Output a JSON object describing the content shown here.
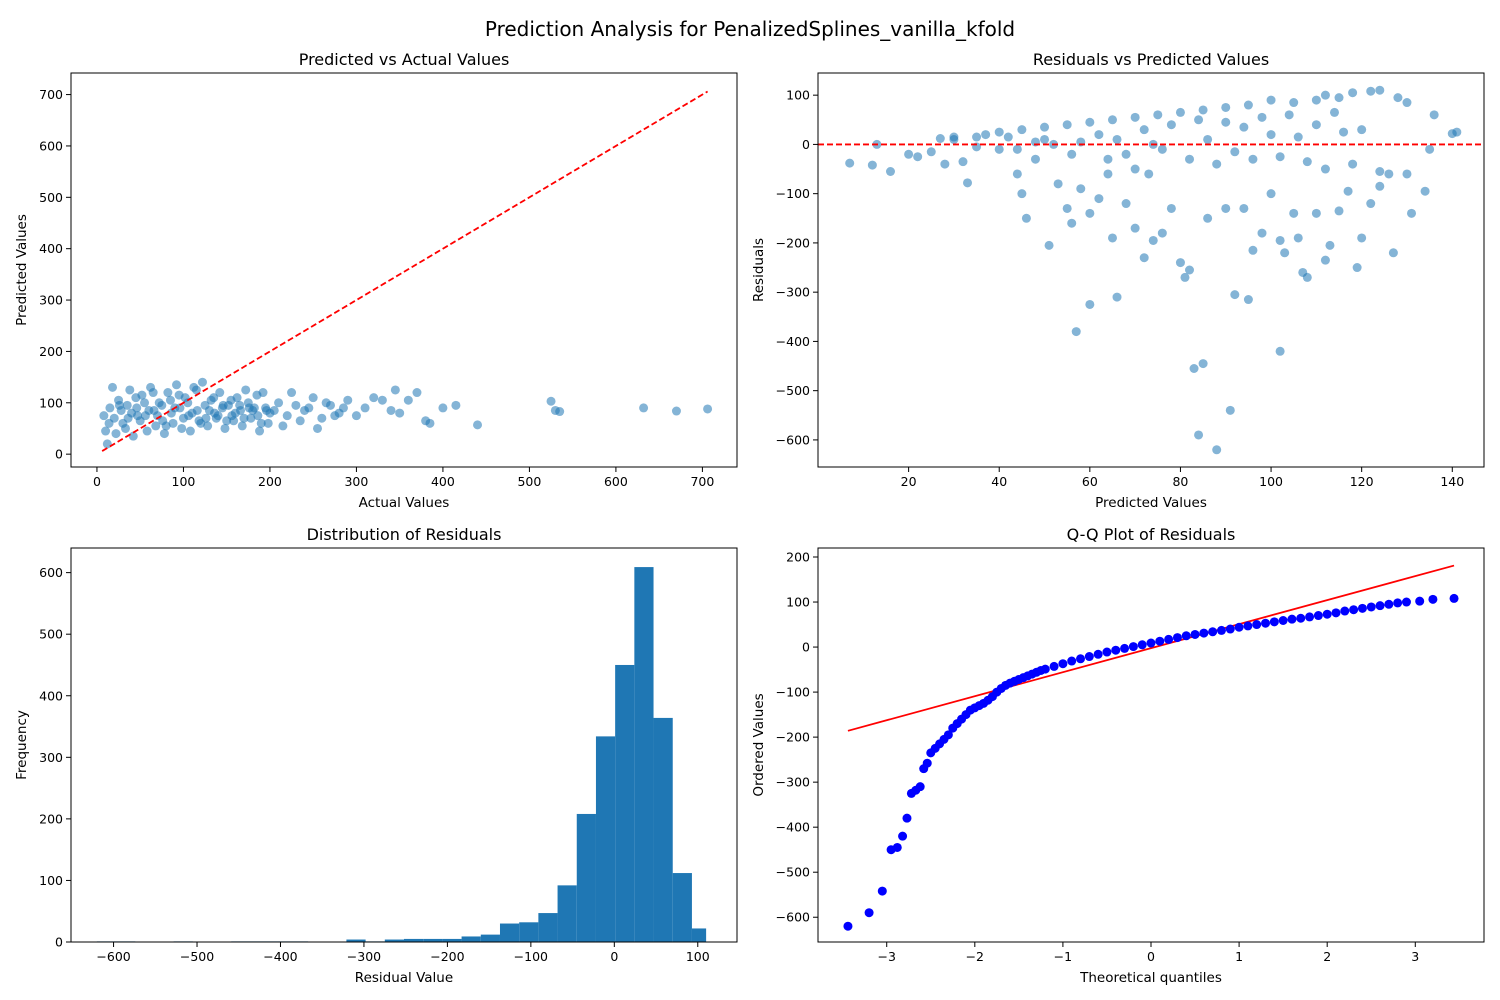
{
  "figure": {
    "suptitle": "Prediction Analysis for PenalizedSplines_vanilla_kfold"
  },
  "colors": {
    "scatter": "#1f77b4",
    "hist": "#1f77b4",
    "ref_line": "#ff0000",
    "qq_points": "#0000ff",
    "qq_line": "#ff0000"
  },
  "chart_data": [
    {
      "type": "scatter",
      "title": "Predicted vs Actual Values",
      "xlabel": "Actual Values",
      "ylabel": "Predicted Values",
      "xlim": [
        -30,
        740
      ],
      "ylim": [
        -25,
        742
      ],
      "xticks": [
        0,
        100,
        200,
        300,
        400,
        500,
        600,
        700
      ],
      "yticks": [
        0,
        100,
        200,
        300,
        400,
        500,
        600,
        700
      ],
      "grid": false,
      "reference_line": {
        "style": "dashed",
        "x": [
          6,
          706
        ],
        "y": [
          6,
          706
        ]
      },
      "points": [
        [
          10,
          45
        ],
        [
          15,
          90
        ],
        [
          20,
          70
        ],
        [
          25,
          105
        ],
        [
          30,
          60
        ],
        [
          35,
          95
        ],
        [
          40,
          80
        ],
        [
          45,
          110
        ],
        [
          50,
          65
        ],
        [
          55,
          100
        ],
        [
          60,
          85
        ],
        [
          65,
          120
        ],
        [
          70,
          75
        ],
        [
          75,
          95
        ],
        [
          80,
          55
        ],
        [
          85,
          105
        ],
        [
          90,
          90
        ],
        [
          95,
          115
        ],
        [
          100,
          70
        ],
        [
          105,
          100
        ],
        [
          110,
          80
        ],
        [
          115,
          125
        ],
        [
          120,
          60
        ],
        [
          125,
          95
        ],
        [
          130,
          85
        ],
        [
          135,
          110
        ],
        [
          140,
          75
        ],
        [
          145,
          90
        ],
        [
          150,
          65
        ],
        [
          155,
          105
        ],
        [
          160,
          80
        ],
        [
          165,
          95
        ],
        [
          170,
          70
        ],
        [
          175,
          100
        ],
        [
          180,
          85
        ],
        [
          185,
          115
        ],
        [
          190,
          60
        ],
        [
          195,
          90
        ],
        [
          200,
          80
        ],
        [
          210,
          100
        ],
        [
          220,
          75
        ],
        [
          230,
          95
        ],
        [
          240,
          85
        ],
        [
          250,
          110
        ],
        [
          260,
          70
        ],
        [
          270,
          95
        ],
        [
          280,
          80
        ],
        [
          290,
          105
        ],
        [
          12,
          20
        ],
        [
          18,
          130
        ],
        [
          22,
          40
        ],
        [
          28,
          85
        ],
        [
          33,
          50
        ],
        [
          38,
          125
        ],
        [
          42,
          35
        ],
        [
          47,
          75
        ],
        [
          52,
          115
        ],
        [
          58,
          45
        ],
        [
          62,
          130
        ],
        [
          68,
          55
        ],
        [
          72,
          100
        ],
        [
          78,
          40
        ],
        [
          82,
          120
        ],
        [
          88,
          60
        ],
        [
          92,
          135
        ],
        [
          98,
          50
        ],
        [
          102,
          110
        ],
        [
          108,
          45
        ],
        [
          112,
          130
        ],
        [
          118,
          65
        ],
        [
          122,
          140
        ],
        [
          128,
          55
        ],
        [
          132,
          105
        ],
        [
          138,
          70
        ],
        [
          142,
          120
        ],
        [
          148,
          50
        ],
        [
          152,
          95
        ],
        [
          158,
          65
        ],
        [
          162,
          110
        ],
        [
          168,
          55
        ],
        [
          172,
          125
        ],
        [
          178,
          70
        ],
        [
          182,
          90
        ],
        [
          188,
          45
        ],
        [
          192,
          120
        ],
        [
          198,
          60
        ],
        [
          205,
          85
        ],
        [
          215,
          55
        ],
        [
          225,
          120
        ],
        [
          235,
          65
        ],
        [
          245,
          90
        ],
        [
          255,
          50
        ],
        [
          265,
          100
        ],
        [
          275,
          75
        ],
        [
          285,
          90
        ],
        [
          8,
          75
        ],
        [
          14,
          60
        ],
        [
          26,
          95
        ],
        [
          36,
          70
        ],
        [
          46,
          90
        ],
        [
          56,
          75
        ],
        [
          66,
          85
        ],
        [
          76,
          65
        ],
        [
          86,
          80
        ],
        [
          96,
          90
        ],
        [
          106,
          75
        ],
        [
          116,
          85
        ],
        [
          126,
          70
        ],
        [
          136,
          80
        ],
        [
          146,
          95
        ],
        [
          156,
          75
        ],
        [
          166,
          85
        ],
        [
          176,
          90
        ],
        [
          186,
          75
        ],
        [
          196,
          85
        ],
        [
          300,
          75
        ],
        [
          310,
          90
        ],
        [
          320,
          110
        ],
        [
          330,
          105
        ],
        [
          340,
          85
        ],
        [
          345,
          125
        ],
        [
          350,
          80
        ],
        [
          360,
          105
        ],
        [
          370,
          120
        ],
        [
          380,
          65
        ],
        [
          385,
          60
        ],
        [
          400,
          90
        ],
        [
          415,
          95
        ],
        [
          440,
          57
        ],
        [
          525,
          103
        ],
        [
          530,
          85
        ],
        [
          535,
          83
        ],
        [
          632,
          90
        ],
        [
          670,
          84
        ],
        [
          706,
          88
        ]
      ]
    },
    {
      "type": "scatter",
      "title": "Residuals vs Predicted Values",
      "xlabel": "Predicted Values",
      "ylabel": "Residuals",
      "xlim": [
        0,
        147
      ],
      "ylim": [
        -655,
        145
      ],
      "xticks": [
        20,
        40,
        60,
        80,
        100,
        120,
        140
      ],
      "yticks": [
        100,
        0,
        -100,
        -200,
        -300,
        -400,
        -500,
        -600
      ],
      "grid": false,
      "reference_line": {
        "style": "dashed",
        "y": 0
      },
      "points": [
        [
          7,
          -38
        ],
        [
          12,
          -42
        ],
        [
          13,
          0
        ],
        [
          16,
          -55
        ],
        [
          20,
          -20
        ],
        [
          22,
          -25
        ],
        [
          25,
          -15
        ],
        [
          27,
          12
        ],
        [
          28,
          -40
        ],
        [
          30,
          15
        ],
        [
          32,
          -35
        ],
        [
          33,
          -78
        ],
        [
          35,
          -5
        ],
        [
          37,
          20
        ],
        [
          40,
          -10
        ],
        [
          42,
          15
        ],
        [
          44,
          -60
        ],
        [
          45,
          -100
        ],
        [
          46,
          -150
        ],
        [
          48,
          -30
        ],
        [
          50,
          10
        ],
        [
          51,
          -205
        ],
        [
          53,
          -80
        ],
        [
          55,
          -130
        ],
        [
          56,
          -160
        ],
        [
          57,
          -380
        ],
        [
          58,
          -90
        ],
        [
          60,
          -325
        ],
        [
          60,
          -140
        ],
        [
          62,
          -110
        ],
        [
          64,
          -60
        ],
        [
          65,
          -190
        ],
        [
          66,
          -310
        ],
        [
          68,
          -120
        ],
        [
          70,
          -170
        ],
        [
          72,
          -230
        ],
        [
          73,
          -60
        ],
        [
          74,
          -195
        ],
        [
          76,
          -180
        ],
        [
          78,
          -130
        ],
        [
          80,
          -240
        ],
        [
          81,
          -270
        ],
        [
          82,
          -255
        ],
        [
          83,
          -455
        ],
        [
          84,
          -590
        ],
        [
          85,
          -445
        ],
        [
          86,
          -150
        ],
        [
          88,
          -620
        ],
        [
          90,
          -130
        ],
        [
          91,
          -540
        ],
        [
          92,
          -305
        ],
        [
          94,
          -130
        ],
        [
          95,
          -315
        ],
        [
          96,
          -215
        ],
        [
          98,
          -180
        ],
        [
          100,
          -100
        ],
        [
          102,
          -195
        ],
        [
          102,
          -420
        ],
        [
          103,
          -220
        ],
        [
          105,
          -140
        ],
        [
          106,
          -190
        ],
        [
          107,
          -260
        ],
        [
          108,
          -270
        ],
        [
          110,
          -140
        ],
        [
          112,
          -235
        ],
        [
          113,
          -205
        ],
        [
          115,
          -135
        ],
        [
          117,
          -95
        ],
        [
          119,
          -250
        ],
        [
          120,
          -190
        ],
        [
          122,
          -120
        ],
        [
          124,
          -85
        ],
        [
          127,
          -220
        ],
        [
          130,
          -60
        ],
        [
          131,
          -140
        ],
        [
          134,
          -95
        ],
        [
          135,
          -10
        ],
        [
          140,
          22
        ],
        [
          141,
          25
        ],
        [
          136,
          60
        ],
        [
          130,
          85
        ],
        [
          128,
          95
        ],
        [
          124,
          110
        ],
        [
          122,
          108
        ],
        [
          118,
          105
        ],
        [
          115,
          95
        ],
        [
          112,
          100
        ],
        [
          110,
          90
        ],
        [
          105,
          85
        ],
        [
          100,
          90
        ],
        [
          95,
          80
        ],
        [
          90,
          75
        ],
        [
          85,
          70
        ],
        [
          80,
          65
        ],
        [
          75,
          60
        ],
        [
          70,
          55
        ],
        [
          65,
          50
        ],
        [
          60,
          45
        ],
        [
          55,
          40
        ],
        [
          50,
          35
        ],
        [
          45,
          30
        ],
        [
          40,
          25
        ],
        [
          35,
          15
        ],
        [
          30,
          10
        ],
        [
          62,
          20
        ],
        [
          68,
          -20
        ],
        [
          72,
          30
        ],
        [
          76,
          -10
        ],
        [
          78,
          40
        ],
        [
          82,
          -30
        ],
        [
          84,
          50
        ],
        [
          86,
          10
        ],
        [
          88,
          -40
        ],
        [
          90,
          45
        ],
        [
          92,
          -15
        ],
        [
          94,
          35
        ],
        [
          96,
          -30
        ],
        [
          98,
          55
        ],
        [
          100,
          20
        ],
        [
          102,
          -25
        ],
        [
          104,
          60
        ],
        [
          106,
          15
        ],
        [
          108,
          -35
        ],
        [
          110,
          40
        ],
        [
          112,
          -50
        ],
        [
          114,
          65
        ],
        [
          116,
          25
        ],
        [
          118,
          -40
        ],
        [
          120,
          30
        ],
        [
          124,
          -55
        ],
        [
          126,
          -60
        ],
        [
          64,
          -30
        ],
        [
          66,
          10
        ],
        [
          70,
          -50
        ],
        [
          74,
          0
        ],
        [
          58,
          5
        ],
        [
          56,
          -20
        ],
        [
          52,
          0
        ],
        [
          48,
          5
        ],
        [
          44,
          -10
        ]
      ]
    },
    {
      "type": "bar",
      "title": "Distribution of Residuals",
      "xlabel": "Residual Value",
      "ylabel": "Frequency",
      "xlim": [
        -651,
        147
      ],
      "ylim": [
        0,
        640
      ],
      "xticks": [
        -600,
        -500,
        -400,
        -300,
        -200,
        -100,
        0,
        100
      ],
      "yticks": [
        0,
        100,
        200,
        300,
        400,
        500,
        600
      ],
      "grid": false,
      "bin_edges": [
        -620,
        -597,
        -574,
        -551,
        -528,
        -505,
        -482,
        -459,
        -436,
        -413,
        -390,
        -367,
        -344,
        -321,
        -298,
        -275,
        -252,
        -229,
        -206,
        -183,
        -160,
        -137,
        -114,
        -91,
        -68,
        -45,
        -22,
        1,
        24,
        47,
        70,
        93,
        110
      ],
      "counts": [
        1,
        1,
        0,
        0,
        1,
        0,
        0,
        1,
        1,
        1,
        1,
        0,
        0,
        4,
        1,
        4,
        5,
        5,
        5,
        9,
        12,
        30,
        32,
        47,
        92,
        208,
        334,
        450,
        609,
        364,
        112,
        22
      ]
    },
    {
      "type": "scatter",
      "title": "Q-Q Plot of Residuals",
      "xlabel": "Theoretical quantiles",
      "ylabel": "Ordered Values",
      "xlim": [
        -3.78,
        3.78
      ],
      "ylim": [
        -655,
        220
      ],
      "xticks": [
        -3,
        -2,
        -1,
        0,
        1,
        2,
        3
      ],
      "yticks": [
        200,
        100,
        0,
        -100,
        -200,
        -300,
        -400,
        -500,
        -600
      ],
      "grid": false,
      "fit_line": {
        "x": [
          -3.44,
          3.44
        ],
        "y": [
          -186,
          181
        ]
      },
      "quantiles_x": [
        -3.44,
        -3.2,
        -3.05,
        -2.95,
        -2.88,
        -2.82,
        -2.77,
        -2.72,
        -2.67,
        -2.62,
        -2.58,
        -2.54,
        -2.5,
        -2.45,
        -2.4,
        -2.35,
        -2.3,
        -2.25,
        -2.2,
        -2.15,
        -2.1,
        -2.05,
        -2.0,
        -1.95,
        -1.9,
        -1.85,
        -1.8,
        -1.75,
        -1.7,
        -1.65,
        -1.6,
        -1.55,
        -1.5,
        -1.45,
        -1.4,
        -1.35,
        -1.3,
        -1.25,
        -1.2,
        -1.1,
        -1.0,
        -0.9,
        -0.8,
        -0.7,
        -0.6,
        -0.5,
        -0.4,
        -0.3,
        -0.2,
        -0.1,
        0.0,
        0.1,
        0.2,
        0.3,
        0.4,
        0.5,
        0.6,
        0.7,
        0.8,
        0.9,
        1.0,
        1.1,
        1.2,
        1.3,
        1.4,
        1.5,
        1.6,
        1.7,
        1.8,
        1.9,
        2.0,
        2.1,
        2.2,
        2.3,
        2.4,
        2.5,
        2.6,
        2.7,
        2.8,
        2.9,
        3.05,
        3.2,
        3.44
      ],
      "quantiles_y": [
        -620,
        -590,
        -542,
        -450,
        -445,
        -420,
        -380,
        -325,
        -318,
        -310,
        -270,
        -258,
        -235,
        -225,
        -215,
        -205,
        -195,
        -180,
        -170,
        -160,
        -150,
        -140,
        -135,
        -130,
        -125,
        -118,
        -110,
        -100,
        -92,
        -85,
        -80,
        -76,
        -72,
        -68,
        -64,
        -60,
        -56,
        -52,
        -49,
        -43,
        -37,
        -31,
        -26,
        -21,
        -16,
        -11,
        -7,
        -3,
        1,
        5,
        9,
        13,
        17,
        21,
        25,
        28,
        31,
        34,
        37,
        40,
        44,
        47,
        50,
        53,
        56,
        59,
        62,
        64,
        67,
        70,
        73,
        76,
        80,
        83,
        86,
        89,
        92,
        95,
        98,
        100,
        102,
        106,
        108
      ]
    }
  ]
}
